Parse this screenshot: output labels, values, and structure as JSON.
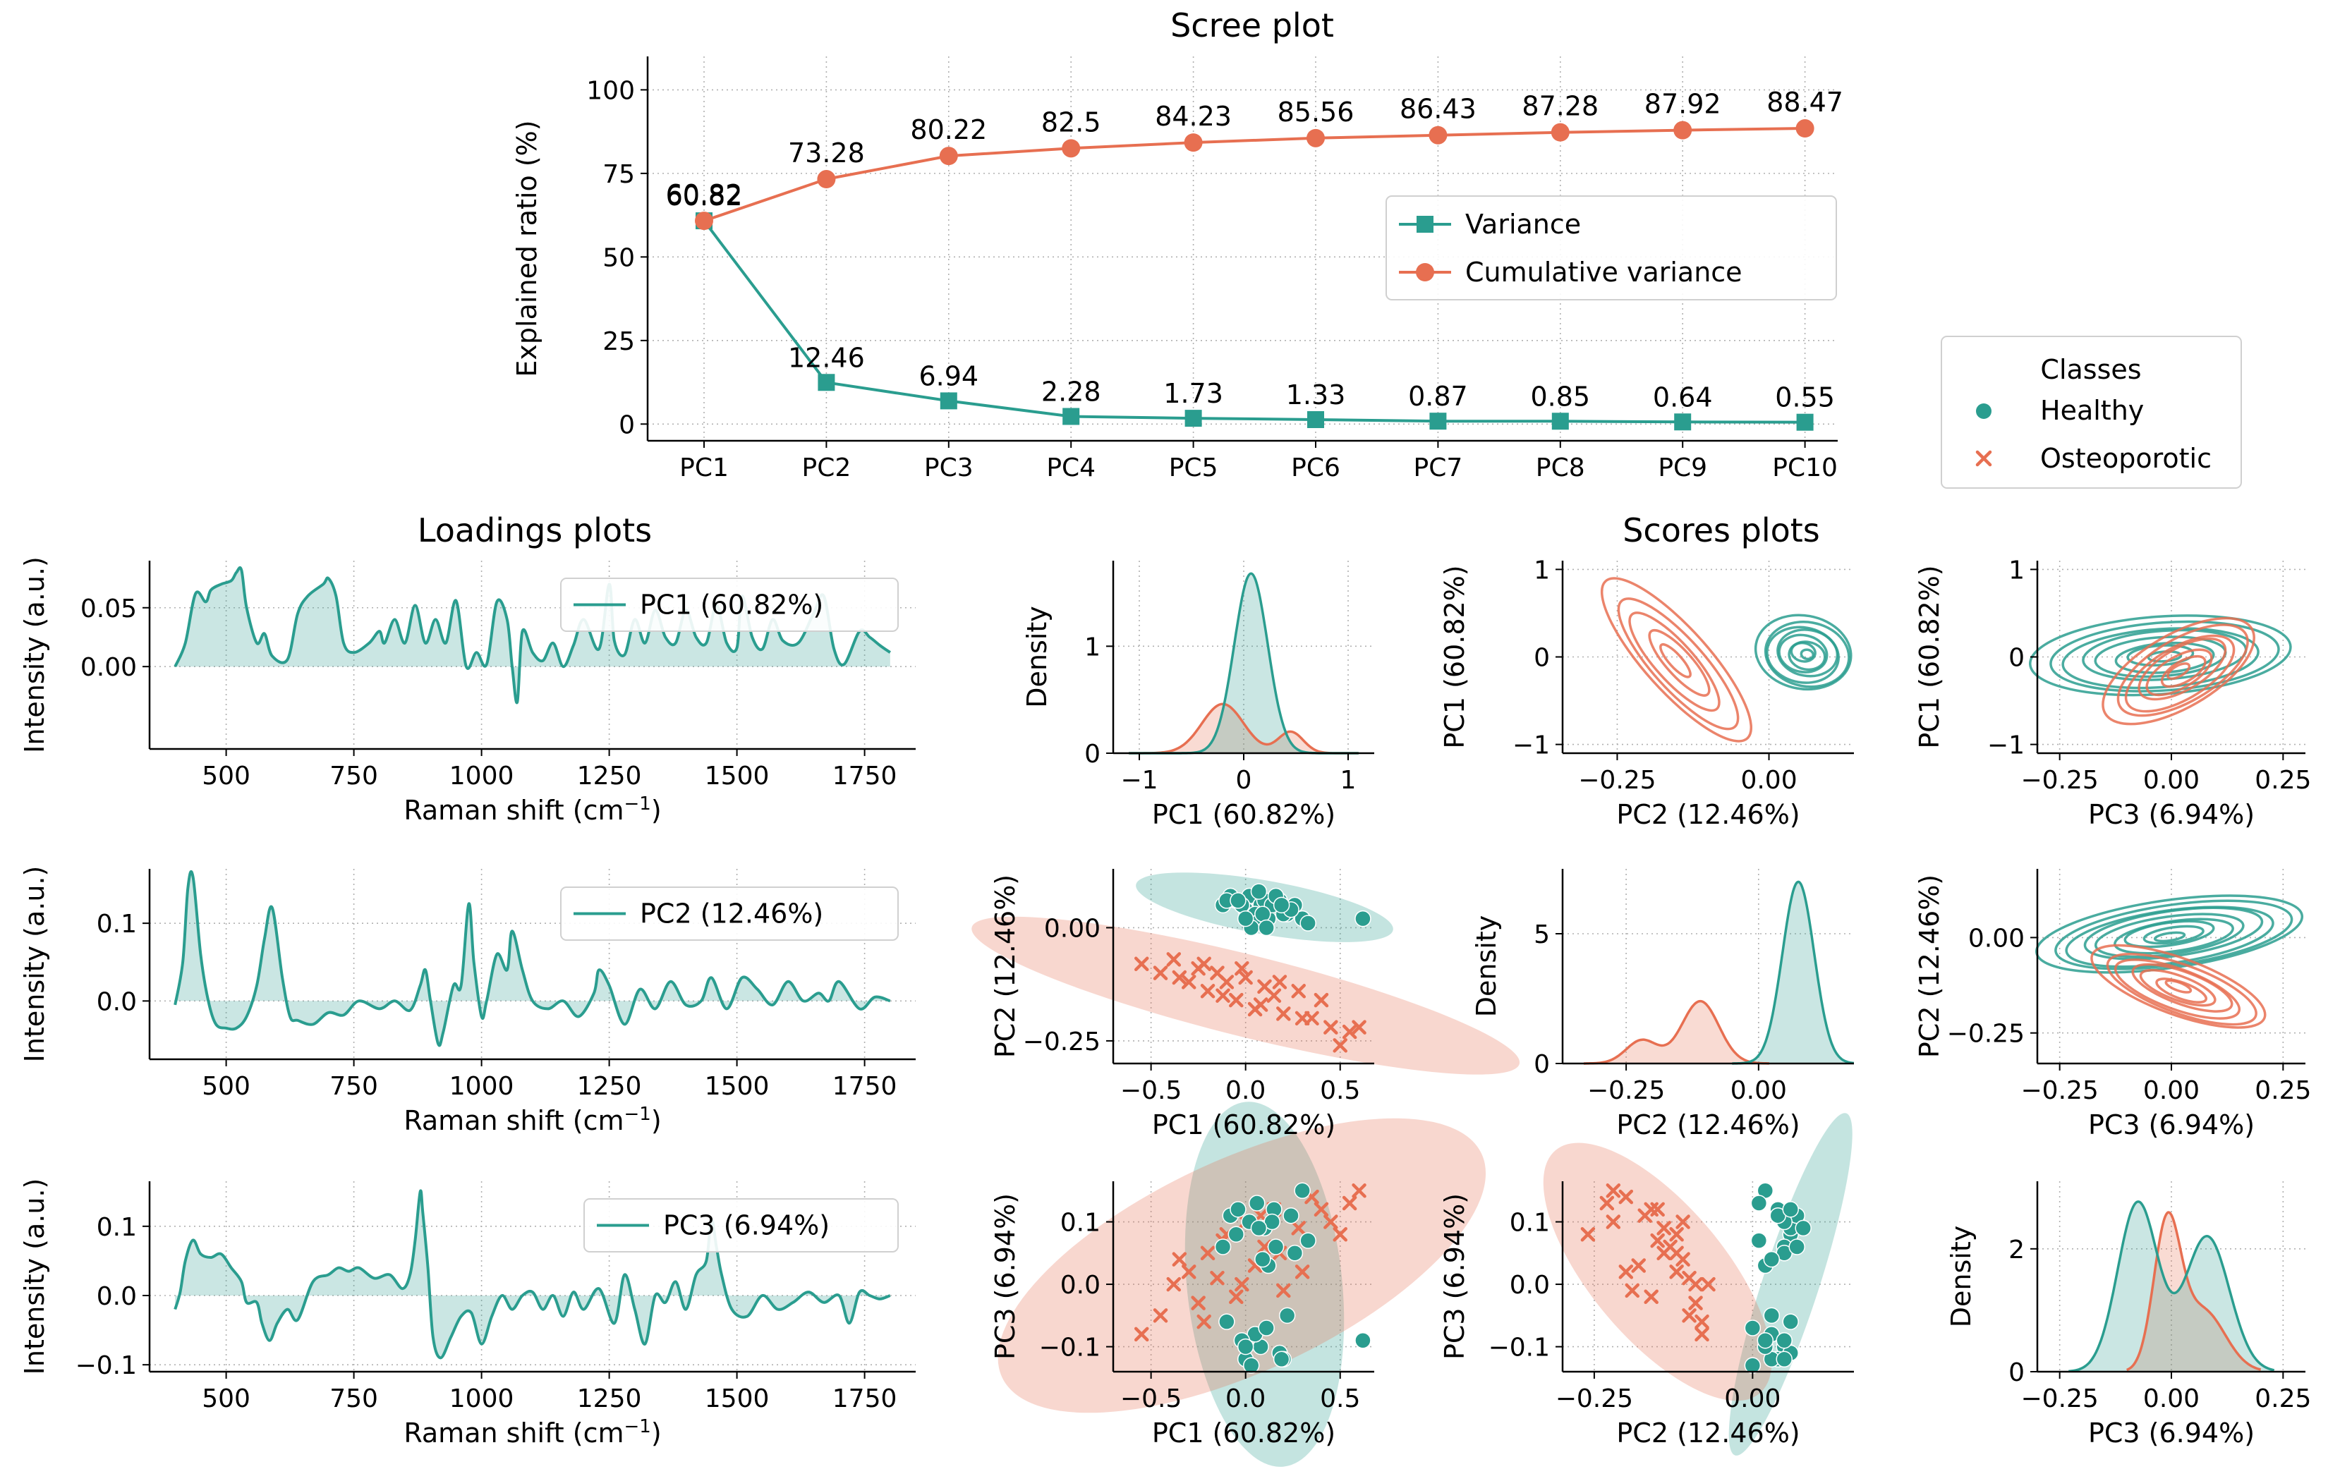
{
  "colors": {
    "healthy": "#2a9d8f",
    "osteoporotic": "#e76f51",
    "grid": "#b0b0b0"
  },
  "scree": {
    "title": "Scree plot",
    "ylabel": "Explained ratio (%)",
    "yticks": [
      "0",
      "25",
      "50",
      "75",
      "100"
    ],
    "legend": {
      "variance": "Variance",
      "cumulative": "Cumulative variance"
    }
  },
  "loadings_title": "Loadings plots",
  "scores_title": "Scores plots",
  "classes_legend": {
    "title": "Classes",
    "healthy": "Healthy",
    "osteoporotic": "Osteoporotic"
  },
  "loading_panels": [
    {
      "legend": "PC1 (60.82%)",
      "xlabel": "Raman shift (cm",
      "xlabel_sup": "−1",
      "xlabel_end": ")",
      "ylabel": "Intensity (a.u.)",
      "yticks": [
        "0.00",
        "0.05"
      ],
      "xticks": [
        "500",
        "750",
        "1000",
        "1250",
        "1500",
        "1750"
      ]
    },
    {
      "legend": "PC2 (12.46%)",
      "xlabel": "Raman shift (cm",
      "xlabel_sup": "−1",
      "xlabel_end": ")",
      "ylabel": "Intensity (a.u.)",
      "yticks": [
        "0.0",
        "0.1"
      ],
      "xticks": [
        "500",
        "750",
        "1000",
        "1250",
        "1500",
        "1750"
      ]
    },
    {
      "legend": "PC3 (6.94%)",
      "xlabel": "Raman shift (cm",
      "xlabel_sup": "−1",
      "xlabel_end": ")",
      "ylabel": "Intensity (a.u.)",
      "yticks": [
        "−0.1",
        "0.0",
        "0.1"
      ],
      "xticks": [
        "500",
        "750",
        "1000",
        "1250",
        "1500",
        "1750"
      ]
    }
  ],
  "score_panels": [
    {
      "id": "d11",
      "type": "density",
      "xlabel": "PC1 (60.82%)",
      "ylabel": "Density",
      "xticks": [
        "−1",
        "0",
        "1"
      ],
      "yticks": [
        "0",
        "1"
      ]
    },
    {
      "id": "k12",
      "type": "kde",
      "xlabel": "PC2 (12.46%)",
      "ylabel": "PC1 (60.82%)",
      "xticks": [
        "−0.25",
        "0.00"
      ],
      "yticks": [
        "−1",
        "0",
        "1"
      ]
    },
    {
      "id": "k13",
      "type": "kde",
      "xlabel": "PC3 (6.94%)",
      "ylabel": "PC1 (60.82%)",
      "xticks": [
        "−0.25",
        "0.00",
        "0.25"
      ],
      "yticks": [
        "−1",
        "0",
        "1"
      ]
    },
    {
      "id": "s21",
      "type": "scatter",
      "xlabel": "PC1 (60.82%)",
      "ylabel": "PC2 (12.46%)",
      "xticks": [
        "−0.5",
        "0.0",
        "0.5"
      ],
      "yticks": [
        "−0.25",
        "0.00"
      ]
    },
    {
      "id": "d22",
      "type": "density",
      "xlabel": "PC2 (12.46%)",
      "ylabel": "Density",
      "xticks": [
        "−0.25",
        "0.00"
      ],
      "yticks": [
        "0",
        "5"
      ]
    },
    {
      "id": "k23",
      "type": "kde",
      "xlabel": "PC3 (6.94%)",
      "ylabel": "PC2 (12.46%)",
      "xticks": [
        "−0.25",
        "0.00",
        "0.25"
      ],
      "yticks": [
        "−0.25",
        "0.00"
      ]
    },
    {
      "id": "s31",
      "type": "scatter",
      "xlabel": "PC1 (60.82%)",
      "ylabel": "PC3 (6.94%)",
      "xticks": [
        "−0.5",
        "0.0",
        "0.5"
      ],
      "yticks": [
        "−0.1",
        "0.0",
        "0.1"
      ]
    },
    {
      "id": "s32",
      "type": "scatter",
      "xlabel": "PC2 (12.46%)",
      "ylabel": "PC3 (6.94%)",
      "xticks": [
        "−0.25",
        "0.00"
      ],
      "yticks": [
        "−0.1",
        "0.0",
        "0.1"
      ]
    },
    {
      "id": "d33",
      "type": "density",
      "xlabel": "PC3 (6.94%)",
      "ylabel": "Density",
      "xticks": [
        "−0.25",
        "0.00",
        "0.25"
      ],
      "yticks": [
        "0",
        "2"
      ]
    }
  ],
  "chart_data": [
    {
      "type": "line",
      "title": "Scree plot",
      "ylabel": "Explained ratio (%)",
      "categories": [
        "PC1",
        "PC2",
        "PC3",
        "PC4",
        "PC5",
        "PC6",
        "PC7",
        "PC8",
        "PC9",
        "PC10"
      ],
      "ylim": [
        -5,
        110
      ],
      "series": [
        {
          "name": "Variance",
          "values": [
            60.82,
            12.46,
            6.94,
            2.28,
            1.73,
            1.33,
            0.87,
            0.85,
            0.64,
            0.55
          ]
        },
        {
          "name": "Cumulative variance",
          "values": [
            60.82,
            73.28,
            80.22,
            82.5,
            84.23,
            85.56,
            86.43,
            87.28,
            87.92,
            88.47
          ]
        }
      ],
      "legend": "right",
      "grid": true
    },
    {
      "type": "area",
      "title": "Loadings plots",
      "xlabel": "Raman shift (cm−1)",
      "ylabel": "Intensity (a.u.)",
      "xlim": [
        350,
        1850
      ],
      "series": [
        {
          "name": "PC1 (60.82%)",
          "ylim": [
            -0.07,
            0.09
          ],
          "x": [
            400,
            420,
            440,
            460,
            470,
            490,
            510,
            520,
            530,
            540,
            560,
            575,
            590,
            620,
            640,
            660,
            690,
            700,
            715,
            730,
            750,
            780,
            800,
            810,
            830,
            850,
            870,
            890,
            910,
            930,
            950,
            970,
            990,
            1010,
            1030,
            1050,
            1060,
            1070,
            1080,
            1100,
            1120,
            1140,
            1160,
            1180,
            1200,
            1230,
            1250,
            1260,
            1280,
            1300,
            1320,
            1340,
            1360,
            1380,
            1400,
            1420,
            1440,
            1460,
            1480,
            1500,
            1510,
            1530,
            1550,
            1570,
            1590,
            1620,
            1650,
            1670,
            1690,
            1710,
            1740,
            1760,
            1780,
            1800
          ],
          "y": [
            0.0,
            0.02,
            0.062,
            0.055,
            0.065,
            0.07,
            0.073,
            0.08,
            0.082,
            0.05,
            0.02,
            0.028,
            0.009,
            0.006,
            0.045,
            0.06,
            0.07,
            0.075,
            0.06,
            0.02,
            0.012,
            0.02,
            0.03,
            0.02,
            0.04,
            0.02,
            0.052,
            0.02,
            0.04,
            0.02,
            0.056,
            0.0,
            0.012,
            0.002,
            0.055,
            0.04,
            0.0,
            -0.03,
            0.03,
            0.012,
            0.005,
            0.02,
            0.0,
            0.018,
            0.04,
            0.015,
            0.07,
            0.022,
            0.01,
            0.04,
            0.02,
            0.048,
            0.025,
            0.02,
            0.048,
            0.025,
            0.02,
            0.052,
            0.02,
            0.016,
            0.06,
            0.025,
            0.015,
            0.04,
            0.022,
            0.02,
            0.045,
            0.06,
            0.015,
            0.002,
            0.03,
            0.025,
            0.018,
            0.012
          ]
        },
        {
          "name": "PC2 (12.46%)",
          "ylim": [
            -0.075,
            0.17
          ],
          "x": [
            400,
            415,
            425,
            435,
            450,
            465,
            480,
            500,
            520,
            540,
            560,
            575,
            590,
            610,
            625,
            640,
            670,
            700,
            730,
            760,
            800,
            830,
            860,
            880,
            890,
            900,
            915,
            925,
            945,
            960,
            975,
            985,
            1000,
            1010,
            1030,
            1050,
            1060,
            1080,
            1100,
            1130,
            1160,
            1190,
            1220,
            1230,
            1250,
            1280,
            1310,
            1340,
            1370,
            1400,
            1430,
            1450,
            1480,
            1510,
            1540,
            1570,
            1600,
            1630,
            1660,
            1680,
            1700,
            1740,
            1770,
            1800
          ],
          "y": [
            -0.005,
            0.05,
            0.145,
            0.16,
            0.06,
            0.0,
            -0.03,
            -0.035,
            -0.035,
            -0.02,
            0.02,
            0.08,
            0.12,
            0.03,
            -0.02,
            -0.025,
            -0.03,
            -0.015,
            -0.018,
            0.0,
            -0.01,
            0.0,
            -0.012,
            0.02,
            0.04,
            0.0,
            -0.055,
            -0.04,
            0.02,
            0.02,
            0.125,
            0.05,
            -0.02,
            0.0,
            0.06,
            0.04,
            0.09,
            0.04,
            0.0,
            -0.01,
            0.0,
            -0.02,
            0.01,
            0.04,
            0.02,
            -0.03,
            0.015,
            -0.01,
            0.025,
            -0.005,
            0.0,
            0.03,
            -0.01,
            0.03,
            0.015,
            -0.005,
            0.025,
            0.0,
            0.01,
            0.0,
            0.025,
            -0.01,
            0.005,
            0.0
          ]
        },
        {
          "name": "PC3 (6.94%)",
          "ylim": [
            -0.11,
            0.165
          ],
          "x": [
            400,
            410,
            420,
            435,
            450,
            470,
            490,
            510,
            530,
            540,
            560,
            570,
            585,
            600,
            620,
            640,
            670,
            700,
            720,
            740,
            760,
            790,
            820,
            845,
            860,
            870,
            880,
            885,
            895,
            905,
            920,
            940,
            960,
            980,
            1000,
            1020,
            1040,
            1060,
            1080,
            1100,
            1120,
            1140,
            1160,
            1180,
            1200,
            1230,
            1260,
            1280,
            1300,
            1320,
            1340,
            1360,
            1380,
            1400,
            1420,
            1440,
            1450,
            1460,
            1470,
            1490,
            1520,
            1550,
            1580,
            1610,
            1640,
            1670,
            1700,
            1720,
            1740,
            1760,
            1780,
            1800
          ],
          "y": [
            -0.02,
            0.005,
            0.05,
            0.08,
            0.06,
            0.055,
            0.06,
            0.04,
            0.02,
            -0.01,
            -0.01,
            -0.04,
            -0.065,
            -0.04,
            -0.02,
            -0.035,
            0.02,
            0.03,
            0.04,
            0.035,
            0.04,
            0.025,
            0.03,
            0.01,
            0.03,
            0.08,
            0.15,
            0.12,
            0.04,
            -0.06,
            -0.09,
            -0.06,
            -0.03,
            -0.025,
            -0.07,
            -0.03,
            0.0,
            -0.02,
            0.0,
            0.005,
            -0.02,
            0.0,
            -0.03,
            0.005,
            -0.02,
            0.01,
            -0.04,
            0.03,
            -0.02,
            -0.07,
            0.0,
            -0.01,
            0.02,
            -0.02,
            0.03,
            0.05,
            0.11,
            0.07,
            0.03,
            -0.02,
            -0.03,
            0.0,
            -0.02,
            -0.01,
            0.005,
            -0.01,
            0.0,
            -0.04,
            0.005,
            0.0,
            -0.005,
            0.0
          ]
        }
      ]
    },
    {
      "type": "scatter",
      "title": "Scores plots",
      "series": [
        {
          "name": "Healthy",
          "pc1": [
            -0.05,
            0.02,
            0.08,
            0.15,
            0.22,
            -0.12,
            0.0,
            0.1,
            0.3,
            0.05,
            -0.08,
            0.18,
            0.26,
            0.12,
            -0.02,
            0.06,
            0.2,
            0.33,
            -0.1,
            0.14,
            0.03,
            0.09,
            0.24,
            0.0,
            0.16,
            -0.04,
            0.11,
            0.62,
            0.07,
            0.19
          ],
          "pc2": [
            0.06,
            0.07,
            0.05,
            0.04,
            0.03,
            0.05,
            0.04,
            0.06,
            0.02,
            0.03,
            0.07,
            0.06,
            0.05,
            0.02,
            0.05,
            0.01,
            0.03,
            0.01,
            0.06,
            0.05,
            0.0,
            0.03,
            0.04,
            0.02,
            0.07,
            0.06,
            0.0,
            0.02,
            0.08,
            0.05
          ],
          "pc3": [
            0.08,
            0.1,
            -0.1,
            0.12,
            -0.05,
            0.06,
            -0.12,
            0.09,
            0.15,
            -0.08,
            0.11,
            -0.11,
            0.05,
            0.03,
            -0.09,
            0.13,
            -0.12,
            0.07,
            -0.06,
            0.1,
            -0.13,
            0.04,
            0.11,
            -0.1,
            0.06,
            0.12,
            -0.07,
            -0.09,
            0.09,
            -0.12
          ]
        },
        {
          "name": "Osteoporotic",
          "pc1": [
            -0.55,
            -0.45,
            -0.38,
            -0.3,
            -0.25,
            -0.2,
            -0.15,
            -0.1,
            -0.05,
            0.0,
            0.05,
            0.1,
            0.15,
            0.2,
            0.28,
            0.35,
            0.45,
            0.55,
            0.6,
            -0.35,
            -0.22,
            -0.12,
            -0.02,
            0.08,
            0.18,
            0.3,
            0.4,
            0.5
          ],
          "pc2": [
            -0.08,
            -0.1,
            -0.07,
            -0.12,
            -0.09,
            -0.14,
            -0.1,
            -0.12,
            -0.16,
            -0.11,
            -0.18,
            -0.13,
            -0.15,
            -0.19,
            -0.14,
            -0.2,
            -0.22,
            -0.23,
            -0.22,
            -0.11,
            -0.08,
            -0.15,
            -0.09,
            -0.17,
            -0.12,
            -0.2,
            -0.16,
            -0.26
          ],
          "pc3": [
            -0.08,
            -0.05,
            0.0,
            0.02,
            -0.03,
            0.05,
            0.01,
            0.08,
            -0.02,
            0.1,
            0.03,
            0.06,
            0.12,
            -0.01,
            0.09,
            0.14,
            0.1,
            0.13,
            0.15,
            0.04,
            -0.06,
            0.07,
            0.0,
            0.11,
            0.05,
            0.02,
            0.12,
            0.08
          ]
        }
      ]
    }
  ]
}
